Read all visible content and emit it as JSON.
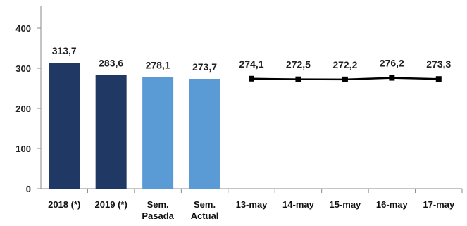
{
  "chart_data": {
    "type": "bar",
    "title": "",
    "xlabel": "",
    "ylabel": "",
    "ylim": [
      0,
      400
    ],
    "yticks": [
      0,
      100,
      200,
      300,
      400
    ],
    "grid": false,
    "legend": "none",
    "bar_series": {
      "categories": [
        {
          "label_lines": [
            "2018 (*)"
          ],
          "value": 313.7,
          "value_label": "313,7",
          "color": "#1f3864"
        },
        {
          "label_lines": [
            "2019 (*)"
          ],
          "value": 283.6,
          "value_label": "283,6",
          "color": "#1f3864"
        },
        {
          "label_lines": [
            "Sem.",
            "Pasada"
          ],
          "value": 278.1,
          "value_label": "278,1",
          "color": "#5b9bd5"
        },
        {
          "label_lines": [
            "Sem.",
            "Actual"
          ],
          "value": 273.7,
          "value_label": "273,7",
          "color": "#5b9bd5"
        }
      ]
    },
    "line_series": {
      "type": "line",
      "color": "#000000",
      "marker": "square",
      "points": [
        {
          "x": "13-may",
          "y": 274.1,
          "value_label": "274,1"
        },
        {
          "x": "14-may",
          "y": 272.5,
          "value_label": "272,5"
        },
        {
          "x": "15-may",
          "y": 272.2,
          "value_label": "272,2"
        },
        {
          "x": "16-may",
          "y": 276.2,
          "value_label": "276,2"
        },
        {
          "x": "17-may",
          "y": 273.3,
          "value_label": "273,3"
        }
      ]
    }
  }
}
